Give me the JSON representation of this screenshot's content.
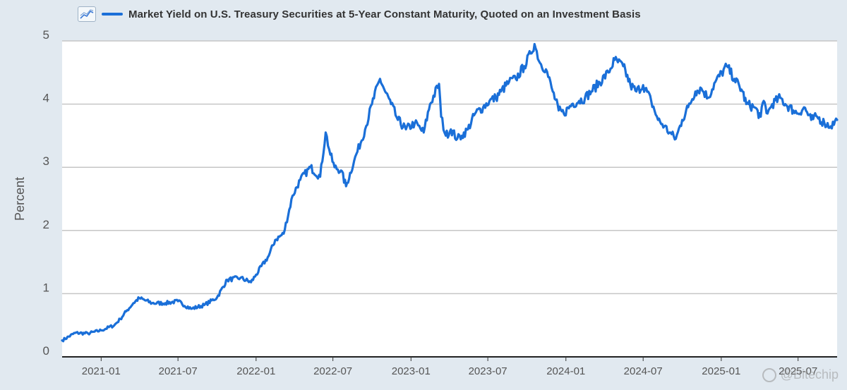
{
  "colors": {
    "background": "#e1e9f0",
    "plot_background": "#ffffff",
    "grid": "#c6c6c6",
    "series": "#1a6fd8"
  },
  "legend": {
    "icon": "chart-line-icon",
    "label": "Market Yield on U.S. Treasury Securities at 5-Year Constant Maturity, Quoted on an Investment Basis"
  },
  "watermark": {
    "text": "@Bitechip",
    "icon": "logo-icon"
  },
  "chart_data": {
    "type": "line",
    "title": "",
    "xlabel": "",
    "ylabel": "Percent",
    "xlim": [
      "2020-10-01",
      "2025-10-01"
    ],
    "ylim": [
      0,
      5
    ],
    "grid": true,
    "legend_position": "top",
    "x_ticks": [
      "2021-01",
      "2021-07",
      "2022-01",
      "2022-07",
      "2023-01",
      "2023-07",
      "2024-01",
      "2024-07",
      "2025-01",
      "2025-07"
    ],
    "y_ticks": [
      0,
      1,
      2,
      3,
      4,
      5
    ],
    "series": [
      {
        "name": "Market Yield on U.S. Treasury Securities at 5-Year Constant Maturity, Quoted on an Investment Basis",
        "x": [
          "2020-10-01",
          "2020-11-01",
          "2020-12-01",
          "2021-01-01",
          "2021-02-01",
          "2021-02-15",
          "2021-03-01",
          "2021-03-18",
          "2021-04-01",
          "2021-05-01",
          "2021-06-01",
          "2021-07-01",
          "2021-08-01",
          "2021-09-01",
          "2021-10-01",
          "2021-10-25",
          "2021-11-25",
          "2021-12-20",
          "2022-01-01",
          "2022-01-31",
          "2022-02-15",
          "2022-03-07",
          "2022-03-28",
          "2022-04-15",
          "2022-05-09",
          "2022-06-01",
          "2022-06-14",
          "2022-06-25",
          "2022-07-05",
          "2022-07-20",
          "2022-08-01",
          "2022-08-20",
          "2022-09-15",
          "2022-10-01",
          "2022-10-20",
          "2022-11-01",
          "2022-11-15",
          "2022-12-01",
          "2022-12-20",
          "2023-01-10",
          "2023-01-31",
          "2023-02-15",
          "2023-03-08",
          "2023-03-13",
          "2023-03-24",
          "2023-04-05",
          "2023-04-20",
          "2023-05-01",
          "2023-05-15",
          "2023-06-01",
          "2023-06-20",
          "2023-07-05",
          "2023-07-20",
          "2023-08-01",
          "2023-08-20",
          "2023-09-05",
          "2023-09-25",
          "2023-10-10",
          "2023-10-19",
          "2023-11-01",
          "2023-11-15",
          "2023-12-01",
          "2023-12-15",
          "2023-12-27",
          "2024-01-15",
          "2024-02-01",
          "2024-02-15",
          "2024-03-01",
          "2024-04-10",
          "2024-04-25",
          "2024-05-15",
          "2024-06-01",
          "2024-06-15",
          "2024-07-01",
          "2024-07-20",
          "2024-08-05",
          "2024-08-20",
          "2024-09-01",
          "2024-09-16",
          "2024-10-01",
          "2024-10-15",
          "2024-11-01",
          "2024-11-15",
          "2024-12-01",
          "2024-12-18",
          "2025-01-14",
          "2025-02-01",
          "2025-02-20",
          "2025-03-01",
          "2025-03-20",
          "2025-04-04",
          "2025-04-11",
          "2025-04-20",
          "2025-05-01",
          "2025-05-20",
          "2025-06-01",
          "2025-06-20",
          "2025-07-01",
          "2025-07-15",
          "2025-08-01",
          "2025-08-15",
          "2025-09-01",
          "2025-09-16",
          "2025-10-01"
        ],
        "y": [
          0.26,
          0.38,
          0.37,
          0.42,
          0.5,
          0.6,
          0.72,
          0.85,
          0.93,
          0.85,
          0.85,
          0.88,
          0.76,
          0.82,
          0.94,
          1.22,
          1.25,
          1.18,
          1.3,
          1.6,
          1.85,
          1.95,
          2.55,
          2.8,
          3.0,
          2.85,
          3.55,
          3.2,
          3.0,
          2.95,
          2.7,
          3.1,
          3.6,
          4.0,
          4.4,
          4.2,
          4.0,
          3.75,
          3.6,
          3.7,
          3.55,
          4.0,
          4.32,
          3.8,
          3.5,
          3.6,
          3.45,
          3.5,
          3.6,
          3.85,
          3.95,
          4.05,
          4.1,
          4.2,
          4.35,
          4.4,
          4.6,
          4.8,
          4.95,
          4.65,
          4.55,
          4.2,
          3.9,
          3.85,
          4.0,
          4.05,
          4.1,
          4.2,
          4.5,
          4.7,
          4.6,
          4.3,
          4.2,
          4.3,
          4.05,
          3.75,
          3.65,
          3.55,
          3.45,
          3.75,
          3.95,
          4.2,
          4.25,
          4.1,
          4.35,
          4.6,
          4.4,
          4.2,
          4.0,
          3.95,
          3.8,
          4.05,
          3.85,
          4.0,
          4.1,
          4.0,
          3.9,
          3.85,
          3.95,
          3.75,
          3.8,
          3.7,
          3.65,
          3.75
        ]
      }
    ]
  }
}
